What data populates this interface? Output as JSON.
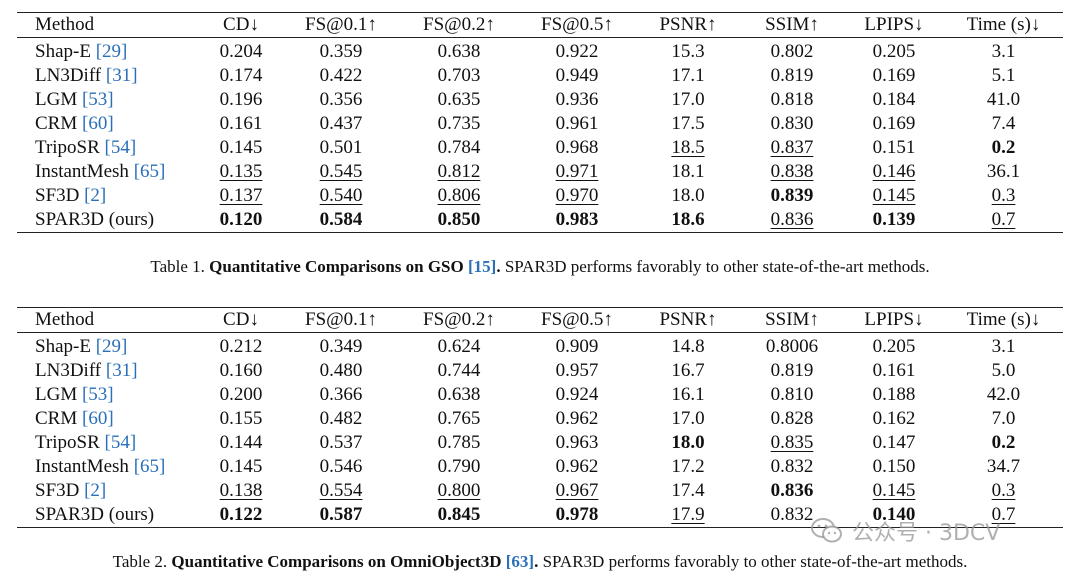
{
  "table1": {
    "header": [
      "Method",
      "CD↓",
      "FS@0.1↑",
      "FS@0.2↑",
      "FS@0.5↑",
      "PSNR↑",
      "SSIM↑",
      "LPIPS↓",
      "Time (s)↓"
    ],
    "rows": [
      {
        "method": "Shap-E",
        "ref": "[29]",
        "values": [
          "0.204",
          "0.359",
          "0.638",
          "0.922",
          "15.3",
          "0.802",
          "0.205",
          "3.1"
        ],
        "bold": [],
        "underline": []
      },
      {
        "method": "LN3Diff",
        "ref": "[31]",
        "values": [
          "0.174",
          "0.422",
          "0.703",
          "0.949",
          "17.1",
          "0.819",
          "0.169",
          "5.1"
        ],
        "bold": [],
        "underline": []
      },
      {
        "method": "LGM",
        "ref": "[53]",
        "values": [
          "0.196",
          "0.356",
          "0.635",
          "0.936",
          "17.0",
          "0.818",
          "0.184",
          "41.0"
        ],
        "bold": [],
        "underline": []
      },
      {
        "method": "CRM",
        "ref": "[60]",
        "values": [
          "0.161",
          "0.437",
          "0.735",
          "0.961",
          "17.5",
          "0.830",
          "0.169",
          "7.4"
        ],
        "bold": [],
        "underline": []
      },
      {
        "method": "TripoSR",
        "ref": "[54]",
        "values": [
          "0.145",
          "0.501",
          "0.784",
          "0.968",
          "18.5",
          "0.837",
          "0.151",
          "0.2"
        ],
        "bold": [
          7
        ],
        "underline": [
          4,
          5
        ]
      },
      {
        "method": "InstantMesh",
        "ref": "[65]",
        "values": [
          "0.135",
          "0.545",
          "0.812",
          "0.971",
          "18.1",
          "0.838",
          "0.146",
          "36.1"
        ],
        "bold": [],
        "underline": [
          0,
          1,
          2,
          3,
          5,
          6
        ]
      },
      {
        "method": "SF3D",
        "ref": "[2]",
        "values": [
          "0.137",
          "0.540",
          "0.806",
          "0.970",
          "18.0",
          "0.839",
          "0.145",
          "0.3"
        ],
        "bold": [
          5
        ],
        "underline": [
          0,
          1,
          2,
          3,
          6,
          7
        ]
      },
      {
        "method": "SPAR3D (ours)",
        "ref": "",
        "values": [
          "0.120",
          "0.584",
          "0.850",
          "0.983",
          "18.6",
          "0.836",
          "0.139",
          "0.7"
        ],
        "bold": [
          0,
          1,
          2,
          3,
          4,
          6
        ],
        "underline": [
          5,
          7
        ]
      }
    ],
    "caption": {
      "label": "Table 1.",
      "title": "Quantitative Comparisons on GSO",
      "ref": "[15]",
      "title_end": ".",
      "text": " SPAR3D performs favorably to other state-of-the-art methods."
    }
  },
  "table2": {
    "header": [
      "Method",
      "CD↓",
      "FS@0.1↑",
      "FS@0.2↑",
      "FS@0.5↑",
      "PSNR↑",
      "SSIM↑",
      "LPIPS↓",
      "Time (s)↓"
    ],
    "rows": [
      {
        "method": "Shap-E",
        "ref": "[29]",
        "values": [
          "0.212",
          "0.349",
          "0.624",
          "0.909",
          "14.8",
          "0.8006",
          "0.205",
          "3.1"
        ],
        "bold": [],
        "underline": []
      },
      {
        "method": "LN3Diff",
        "ref": "[31]",
        "values": [
          "0.160",
          "0.480",
          "0.744",
          "0.957",
          "16.7",
          "0.819",
          "0.161",
          "5.0"
        ],
        "bold": [],
        "underline": []
      },
      {
        "method": "LGM",
        "ref": "[53]",
        "values": [
          "0.200",
          "0.366",
          "0.638",
          "0.924",
          "16.1",
          "0.810",
          "0.188",
          "42.0"
        ],
        "bold": [],
        "underline": []
      },
      {
        "method": "CRM",
        "ref": "[60]",
        "values": [
          "0.155",
          "0.482",
          "0.765",
          "0.962",
          "17.0",
          "0.828",
          "0.162",
          "7.0"
        ],
        "bold": [],
        "underline": []
      },
      {
        "method": "TripoSR",
        "ref": "[54]",
        "values": [
          "0.144",
          "0.537",
          "0.785",
          "0.963",
          "18.0",
          "0.835",
          "0.147",
          "0.2"
        ],
        "bold": [
          4,
          7
        ],
        "underline": [
          5
        ]
      },
      {
        "method": "InstantMesh",
        "ref": "[65]",
        "values": [
          "0.145",
          "0.546",
          "0.790",
          "0.962",
          "17.2",
          "0.832",
          "0.150",
          "34.7"
        ],
        "bold": [],
        "underline": []
      },
      {
        "method": "SF3D",
        "ref": "[2]",
        "values": [
          "0.138",
          "0.554",
          "0.800",
          "0.967",
          "17.4",
          "0.836",
          "0.145",
          "0.3"
        ],
        "bold": [
          5
        ],
        "underline": [
          0,
          1,
          2,
          3,
          6,
          7
        ]
      },
      {
        "method": "SPAR3D (ours)",
        "ref": "",
        "values": [
          "0.122",
          "0.587",
          "0.845",
          "0.978",
          "17.9",
          "0.832",
          "0.140",
          "0.7"
        ],
        "bold": [
          0,
          1,
          2,
          3,
          6
        ],
        "underline": [
          4,
          7
        ]
      }
    ],
    "caption": {
      "label": "Table 2.",
      "title": "Quantitative Comparisons on OmniObject3D",
      "ref": "[63]",
      "title_end": ".",
      "text": " SPAR3D performs favorably to other state-of-the-art methods."
    }
  },
  "watermark": {
    "text": "公众号 · 3DCV",
    "icon": "wechat-icon"
  },
  "colors": {
    "link": "#2a6fb8",
    "text": "#111111"
  }
}
